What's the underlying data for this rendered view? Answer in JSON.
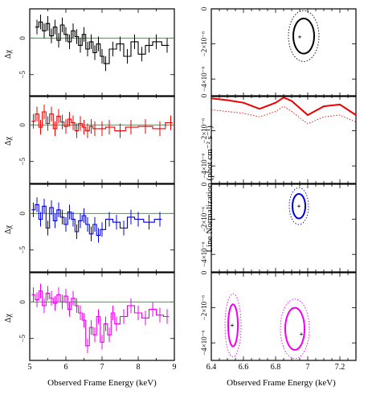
{
  "left": {
    "xlabel": "Observed Frame Energy (keV)",
    "ylabel": "Δχ",
    "xlim": [
      5,
      9
    ],
    "ylim": [
      -8,
      4
    ],
    "xticks": [
      "5",
      "6",
      "7",
      "8",
      "9"
    ],
    "yticks": [
      "0",
      "−5"
    ],
    "panels": [
      {
        "color": "#000000",
        "zero_color": "#00cc00",
        "x": [
          5.2,
          5.3,
          5.4,
          5.5,
          5.6,
          5.7,
          5.8,
          5.9,
          6.0,
          6.1,
          6.2,
          6.3,
          6.4,
          6.5,
          6.6,
          6.7,
          6.8,
          6.9,
          7.0,
          7.1,
          7.3,
          7.5,
          7.7,
          7.9,
          8.1,
          8.3,
          8.5,
          8.8
        ],
        "y": [
          1.5,
          2.2,
          1.0,
          2.0,
          0.3,
          1.5,
          -0.3,
          1.8,
          0.5,
          -0.5,
          1.0,
          0.2,
          -1.0,
          0.5,
          -1.5,
          -0.5,
          -2.0,
          -0.8,
          -2.5,
          -3.5,
          -1.5,
          -0.8,
          -2.5,
          -0.5,
          -2.2,
          -1.0,
          -0.5,
          -1.0
        ]
      },
      {
        "color": "#ee0000",
        "zero_color": "#00cc00",
        "x": [
          5.1,
          5.2,
          5.3,
          5.4,
          5.5,
          5.6,
          5.7,
          5.8,
          5.9,
          6.0,
          6.1,
          6.2,
          6.3,
          6.4,
          6.5,
          6.6,
          6.7,
          6.8,
          7.0,
          7.2,
          7.5,
          7.8,
          8.2,
          8.6,
          8.9
        ],
        "y": [
          0.5,
          1.5,
          -0.3,
          1.8,
          0.2,
          1.5,
          -0.5,
          1.2,
          0.4,
          -0.2,
          0.8,
          0.3,
          -0.8,
          0.2,
          -0.3,
          -0.8,
          -0.2,
          -0.5,
          -0.5,
          -0.3,
          -0.8,
          -0.3,
          -0.2,
          -0.5,
          0.3
        ]
      },
      {
        "color": "#0000dd",
        "zero_color": "#00cc00",
        "x": [
          5.1,
          5.2,
          5.3,
          5.4,
          5.5,
          5.6,
          5.7,
          5.8,
          5.9,
          6.0,
          6.1,
          6.2,
          6.3,
          6.4,
          6.5,
          6.6,
          6.7,
          6.8,
          6.9,
          7.0,
          7.2,
          7.4,
          7.6,
          7.8,
          8.0,
          8.3,
          8.6
        ],
        "y": [
          0.5,
          1.2,
          -0.8,
          1.0,
          -2.0,
          0.8,
          -1.0,
          0.5,
          -0.5,
          -1.5,
          0.2,
          -0.8,
          -2.5,
          -1.0,
          -0.3,
          -1.5,
          -2.8,
          -1.5,
          -3.0,
          -2.2,
          -0.8,
          -1.2,
          -2.0,
          -0.5,
          -0.8,
          -1.2,
          -0.8
        ]
      },
      {
        "color": "#ee00ee",
        "zero_color": "#00cc00",
        "x": [
          5.1,
          5.2,
          5.3,
          5.4,
          5.5,
          5.6,
          5.7,
          5.8,
          5.9,
          6.0,
          6.1,
          6.2,
          6.3,
          6.4,
          6.5,
          6.6,
          6.7,
          6.8,
          6.9,
          7.0,
          7.1,
          7.2,
          7.3,
          7.4,
          7.6,
          7.8,
          8.0,
          8.2,
          8.4,
          8.6,
          8.8
        ],
        "y": [
          1.0,
          0.3,
          1.5,
          -0.5,
          1.2,
          0.5,
          -0.2,
          1.0,
          0.0,
          0.8,
          -1.0,
          0.5,
          -0.5,
          -1.5,
          -2.5,
          -6.0,
          -3.5,
          -4.5,
          -2.0,
          -5.5,
          -3.0,
          -4.5,
          -1.5,
          -3.0,
          -2.0,
          -0.5,
          -1.5,
          -2.2,
          -1.0,
          -1.8,
          -2.0
        ]
      }
    ]
  },
  "right": {
    "xlabel": "Observed Frame Energy (keV)",
    "ylabel": "Line Normalization (phot cm⁻² s⁻¹)",
    "xlim": [
      6.4,
      7.3
    ],
    "ylim": [
      -5,
      0
    ],
    "xticks": [
      "6.4",
      "6.6",
      "6.8",
      "7",
      "7.2"
    ],
    "yticks": [
      "0",
      "−2×10⁻⁶",
      "−4×10⁻⁶"
    ],
    "panels": [
      {
        "color": "#000000",
        "contours": [
          {
            "style": "solid",
            "center": [
              6.975,
              -1.55
            ],
            "rx": 0.065,
            "ry": 1.0
          },
          {
            "style": "dotted",
            "center": [
              6.975,
              -1.55
            ],
            "rx": 0.095,
            "ry": 1.45
          }
        ],
        "best_fit": [
          [
            6.95,
            -1.6
          ]
        ]
      },
      {
        "color": "#ee0000",
        "lines": [
          {
            "style": "solid",
            "x": [
              6.4,
              6.5,
              6.6,
              6.7,
              6.8,
              6.85,
              6.9,
              7.0,
              7.1,
              7.2,
              7.3
            ],
            "y": [
              -0.15,
              -0.25,
              -0.4,
              -0.75,
              -0.4,
              -0.1,
              -0.3,
              -1.1,
              -0.6,
              -0.5,
              -1.1
            ]
          },
          {
            "style": "dotted",
            "x": [
              6.4,
              6.5,
              6.6,
              6.7,
              6.8,
              6.85,
              6.9,
              7.0,
              7.1,
              7.2,
              7.3
            ],
            "y": [
              -0.8,
              -0.9,
              -1.0,
              -1.2,
              -0.9,
              -0.6,
              -0.9,
              -1.6,
              -1.2,
              -1.1,
              -1.5
            ]
          }
        ],
        "best_fit": []
      },
      {
        "color": "#0000dd",
        "contours": [
          {
            "style": "solid",
            "center": [
              6.945,
              -1.25
            ],
            "rx": 0.04,
            "ry": 0.7
          },
          {
            "style": "dotted",
            "center": [
              6.945,
              -1.25
            ],
            "rx": 0.06,
            "ry": 1.05
          }
        ],
        "best_fit": [
          [
            6.945,
            -1.25
          ]
        ]
      },
      {
        "color": "#ee00ee",
        "contours": [
          {
            "style": "solid",
            "center": [
              6.535,
              -3.0
            ],
            "rx": 0.03,
            "ry": 1.2
          },
          {
            "style": "dotted",
            "center": [
              6.535,
              -3.0
            ],
            "rx": 0.05,
            "ry": 1.8
          },
          {
            "style": "solid",
            "center": [
              6.92,
              -3.2
            ],
            "rx": 0.06,
            "ry": 1.2
          },
          {
            "style": "dotted",
            "center": [
              6.92,
              -3.2
            ],
            "rx": 0.09,
            "ry": 1.7
          }
        ],
        "best_fit": [
          [
            6.53,
            -3.0
          ],
          [
            6.96,
            -3.5
          ]
        ]
      }
    ]
  }
}
